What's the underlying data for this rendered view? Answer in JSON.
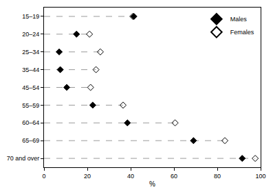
{
  "chart_data": {
    "type": "scatter",
    "orientation": "horizontal",
    "categories": [
      "15–19",
      "20–24",
      "25–34",
      "35–44",
      "45–54",
      "55–59",
      "60–64",
      "65–69",
      "70 and over"
    ],
    "series": [
      {
        "name": "Males",
        "color": "#000000",
        "marker": "diamond",
        "values": [
          41.5,
          15,
          7,
          7.5,
          10.5,
          22.5,
          38.5,
          69,
          91.5
        ]
      },
      {
        "name": "Females",
        "color": "#000000",
        "marker": "diamond-open",
        "values": [
          41,
          21,
          26,
          24,
          21.5,
          36.5,
          60.5,
          83.5,
          97.5
        ]
      }
    ],
    "x_label": "%",
    "xlim": [
      0,
      100
    ],
    "xticks": [
      0,
      20,
      40,
      60,
      80,
      100
    ],
    "grid": false,
    "legend": "top right",
    "line_style": "dash"
  }
}
